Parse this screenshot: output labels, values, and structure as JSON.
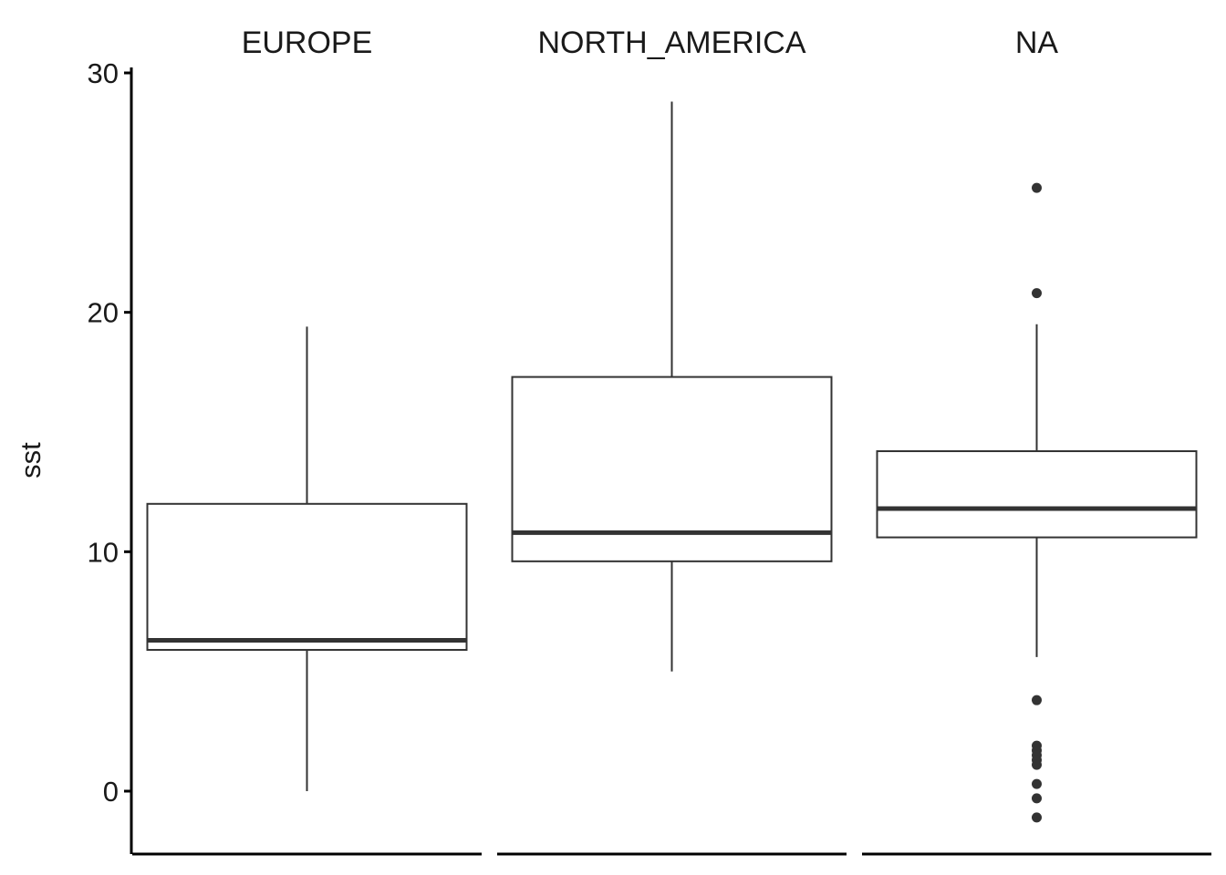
{
  "chart_data": {
    "type": "boxplot",
    "ylabel": "sst",
    "xlabel": "",
    "ylim": [
      -2.5,
      30.3
    ],
    "yticks": [
      0,
      10,
      20,
      30
    ],
    "grid": false,
    "legend": "none",
    "facets": [
      "EUROPE",
      "NORTH_AMERICA",
      "NA"
    ],
    "boxes": [
      {
        "facet": "EUROPE",
        "lower_whisker": 0.0,
        "q1": 5.9,
        "median": 6.3,
        "q3": 12.0,
        "upper_whisker": 19.4,
        "outliers": []
      },
      {
        "facet": "NORTH_AMERICA",
        "lower_whisker": 5.0,
        "q1": 9.6,
        "median": 10.8,
        "q3": 17.3,
        "upper_whisker": 28.8,
        "outliers": []
      },
      {
        "facet": "NA",
        "lower_whisker": 5.6,
        "q1": 10.6,
        "median": 11.8,
        "q3": 14.2,
        "upper_whisker": 19.5,
        "outliers": [
          25.2,
          20.8,
          3.8,
          1.9,
          1.7,
          1.5,
          1.3,
          1.1,
          0.3,
          -0.3,
          -1.1
        ]
      }
    ],
    "colors": {
      "line": "#333333",
      "axis": "#000000",
      "box_fill": "#ffffff",
      "text": "#1a1a1a"
    }
  }
}
